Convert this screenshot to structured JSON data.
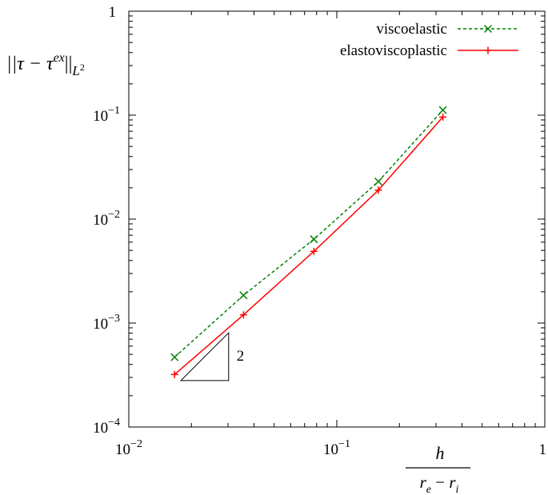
{
  "chart_data": {
    "type": "line",
    "xscale": "log",
    "yscale": "log",
    "xlim": [
      0.01,
      1
    ],
    "ylim": [
      0.0001,
      1
    ],
    "grid": false,
    "legend_position": "top-right",
    "xticks": [
      {
        "value": 0.01,
        "base": "10",
        "exp": "−2"
      },
      {
        "value": 0.1,
        "base": "10",
        "exp": "−1"
      },
      {
        "value": 1,
        "base": "1",
        "exp": ""
      }
    ],
    "yticks": [
      {
        "value": 0.0001,
        "base": "10",
        "exp": "−4"
      },
      {
        "value": 0.001,
        "base": "10",
        "exp": "−3"
      },
      {
        "value": 0.01,
        "base": "10",
        "exp": "−2"
      },
      {
        "value": 0.1,
        "base": "10",
        "exp": "−1"
      },
      {
        "value": 1,
        "base": "1",
        "exp": ""
      }
    ],
    "xlabel": {
      "numerator": "h",
      "denom_r1": "r",
      "denom_sub1": "e",
      "denom_op": " − ",
      "denom_r2": "r",
      "denom_sub2": "i"
    },
    "ylabel": {
      "open": "||τ − τ",
      "sup": "ex",
      "close": "||",
      "sub": "L",
      "subsup": "2"
    },
    "series": [
      {
        "name": "viscoelastic",
        "color": "#008000",
        "line_style": "dashed",
        "marker": "x",
        "x": [
          0.0166,
          0.0356,
          0.0776,
          0.1585,
          0.3236
        ],
        "y": [
          0.00047,
          0.00185,
          0.0064,
          0.023,
          0.112
        ]
      },
      {
        "name": "elastoviscoplastic",
        "color": "#ff0000",
        "line_style": "solid",
        "marker": "+",
        "x": [
          0.0166,
          0.0356,
          0.0776,
          0.1585,
          0.3236
        ],
        "y": [
          0.00032,
          0.0012,
          0.0049,
          0.019,
          0.096
        ]
      }
    ],
    "slope_triangle": {
      "label": "2",
      "x_start": 0.0178,
      "x_end": 0.0302,
      "y_base": 0.00028
    }
  }
}
